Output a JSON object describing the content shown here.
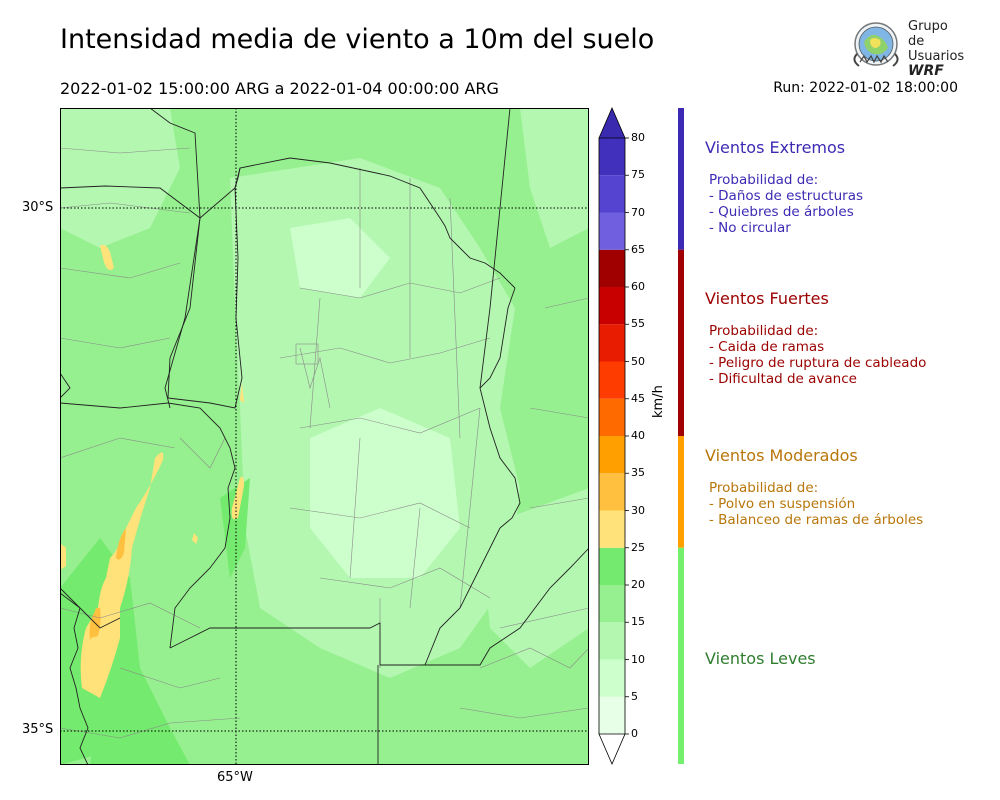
{
  "title": "Intensidad media de viento a 10m del suelo",
  "period": "2022-01-02 15:00:00 ARG  a  2022-01-04 00:00:00 ARG",
  "run": "Run: 2022-01-02 18:00:00",
  "logo": {
    "line1": "Grupo de",
    "line2": "Usuarios",
    "line3": "WRF",
    "icon": "globe-logo-icon"
  },
  "map": {
    "lat_labels": [
      "30°S",
      "35°S"
    ],
    "lon_labels": [
      "65°W"
    ],
    "gridlines": "dotted"
  },
  "colorbar": {
    "unit": "km/h",
    "ticks": [
      "0",
      "5",
      "10",
      "15",
      "20",
      "25",
      "30",
      "35",
      "40",
      "45",
      "50",
      "55",
      "60",
      "65",
      "70",
      "75",
      "80"
    ],
    "bins": [
      {
        "from": 0,
        "to": 5,
        "color": "#e6ffe6"
      },
      {
        "from": 5,
        "to": 10,
        "color": "#ccffcc"
      },
      {
        "from": 10,
        "to": 15,
        "color": "#b3f7b0"
      },
      {
        "from": 15,
        "to": 20,
        "color": "#96f08f"
      },
      {
        "from": 20,
        "to": 25,
        "color": "#74ea6e"
      },
      {
        "from": 25,
        "to": 30,
        "color": "#ffe27a"
      },
      {
        "from": 30,
        "to": 35,
        "color": "#ffc040"
      },
      {
        "from": 35,
        "to": 40,
        "color": "#ffa000"
      },
      {
        "from": 40,
        "to": 45,
        "color": "#ff6a00"
      },
      {
        "from": 45,
        "to": 50,
        "color": "#ff3c00"
      },
      {
        "from": 50,
        "to": 55,
        "color": "#e81c00"
      },
      {
        "from": 55,
        "to": 60,
        "color": "#c80000"
      },
      {
        "from": 60,
        "to": 65,
        "color": "#a00000"
      },
      {
        "from": 65,
        "to": 70,
        "color": "#7060e0"
      },
      {
        "from": 70,
        "to": 75,
        "color": "#5444d0"
      },
      {
        "from": 75,
        "to": 80,
        "color": "#4030bc"
      }
    ],
    "extend_over_color": "#3a2ab0",
    "extend_under_color": "#ffffff"
  },
  "categories": [
    {
      "name": "Vientos Extremos",
      "color": "#3c2ab4",
      "bar_color": "#3c2ab4",
      "from": 65,
      "to": 85,
      "heading": "Probabilidad de:",
      "items": [
        "- Daños de estructuras",
        "- Quiebres de árboles",
        "- No circular"
      ]
    },
    {
      "name": "Vientos Fuertes",
      "color": "#9b0000",
      "bar_color": "#a00000",
      "from": 40,
      "to": 65,
      "heading": "Probabilidad de:",
      "items": [
        "- Caida de ramas",
        "- Peligro de ruptura de cableado",
        "- Dificultad de avance"
      ]
    },
    {
      "name": "Vientos Moderados",
      "color": "#b8760a",
      "bar_color": "#ffa000",
      "from": 25,
      "to": 40,
      "heading": "Probabilidad de:",
      "items": [
        "- Polvo en suspensión",
        "- Balanceo de ramas de árboles"
      ]
    },
    {
      "name": "Vientos Leves",
      "color": "#2f7d2f",
      "bar_color": "#74f06c",
      "from": -5,
      "to": 25,
      "heading": "",
      "items": []
    }
  ]
}
